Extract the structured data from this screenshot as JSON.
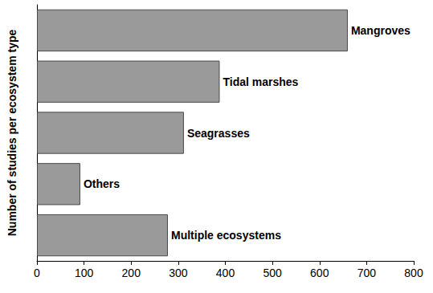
{
  "chart_data": {
    "type": "bar",
    "orientation": "horizontal",
    "ylabel": "Number of studies per ecosystem type",
    "categories": [
      "Mangroves",
      "Tidal marshes",
      "Seagrasses",
      "Others",
      "Multiple ecosystems"
    ],
    "values": [
      660,
      388,
      312,
      92,
      278
    ],
    "color": "#9a9a9a",
    "xlim": [
      0,
      800
    ],
    "xticks": [
      0,
      100,
      200,
      300,
      400,
      500,
      600,
      700,
      800
    ],
    "grid": false,
    "tick_labels": "x"
  }
}
